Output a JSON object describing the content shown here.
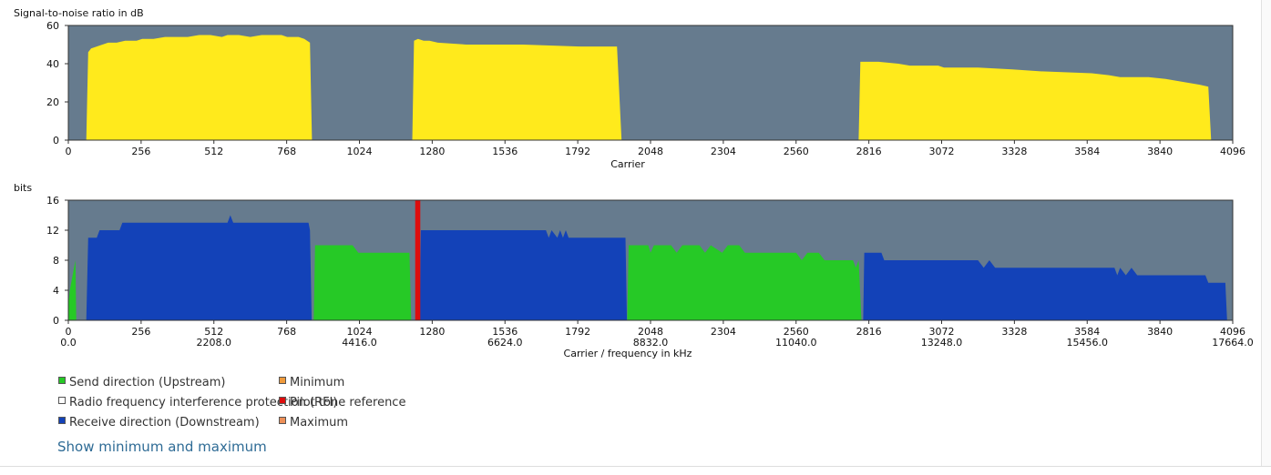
{
  "colors": {
    "plot_bg": "#667b8e",
    "snr": "#ffea1c",
    "upstream": "#26c926",
    "downstream": "#1342b8",
    "rfi": "#ffffff",
    "pilot": "#dd0d0d",
    "minimum": "#ef9a3c",
    "maximum": "#ed8f58"
  },
  "chart_data": [
    {
      "type": "area",
      "ylabel": "Signal-to-noise ratio in dB",
      "xlabel": "Carrier",
      "xlim": [
        0,
        4096
      ],
      "ylim": [
        0,
        60
      ],
      "yticks": [
        0,
        20,
        40,
        60
      ],
      "xticks": [
        0,
        256,
        512,
        768,
        1024,
        1280,
        1536,
        1792,
        2048,
        2304,
        2560,
        2816,
        3072,
        3328,
        3584,
        3840,
        4096
      ],
      "grid": false,
      "series": [
        {
          "name": "",
          "color_key": "snr",
          "points": [
            [
              63,
              0
            ],
            [
              70,
              46
            ],
            [
              80,
              48
            ],
            [
              100,
              49
            ],
            [
              120,
              50
            ],
            [
              140,
              51
            ],
            [
              170,
              51
            ],
            [
              200,
              52
            ],
            [
              240,
              52
            ],
            [
              260,
              53
            ],
            [
              300,
              53
            ],
            [
              340,
              54
            ],
            [
              360,
              54
            ],
            [
              380,
              54
            ],
            [
              420,
              54
            ],
            [
              460,
              55
            ],
            [
              500,
              55
            ],
            [
              540,
              54
            ],
            [
              560,
              55
            ],
            [
              600,
              55
            ],
            [
              640,
              54
            ],
            [
              680,
              55
            ],
            [
              720,
              55
            ],
            [
              750,
              55
            ],
            [
              770,
              54
            ],
            [
              790,
              54
            ],
            [
              810,
              54
            ],
            [
              830,
              53
            ],
            [
              850,
              51
            ],
            [
              857,
              0
            ],
            [
              1210,
              0
            ],
            [
              1216,
              52
            ],
            [
              1230,
              53
            ],
            [
              1250,
              52
            ],
            [
              1270,
              52
            ],
            [
              1300,
              51
            ],
            [
              1400,
              50
            ],
            [
              1600,
              50
            ],
            [
              1800,
              49
            ],
            [
              1930,
              49
            ],
            [
              1946,
              0
            ],
            [
              2780,
              0
            ],
            [
              2786,
              41
            ],
            [
              2850,
              41
            ],
            [
              2920,
              40
            ],
            [
              2960,
              39
            ],
            [
              3060,
              39
            ],
            [
              3080,
              38
            ],
            [
              3200,
              38
            ],
            [
              3320,
              37
            ],
            [
              3420,
              36
            ],
            [
              3600,
              35
            ],
            [
              3660,
              34
            ],
            [
              3700,
              33
            ],
            [
              3800,
              33
            ],
            [
              3860,
              32
            ],
            [
              3900,
              31
            ],
            [
              3940,
              30
            ],
            [
              3980,
              29
            ],
            [
              4010,
              28
            ],
            [
              4020,
              0
            ]
          ]
        }
      ]
    },
    {
      "type": "area",
      "ylabel": "bits",
      "xlabel": "Carrier / frequency in kHz",
      "xlim": [
        0,
        4096
      ],
      "ylim": [
        0,
        16
      ],
      "yticks": [
        0,
        4,
        8,
        12,
        16
      ],
      "xticks": [
        0,
        256,
        512,
        768,
        1024,
        1280,
        1536,
        1792,
        2048,
        2304,
        2560,
        2816,
        3072,
        3328,
        3584,
        3840,
        4096
      ],
      "freq_labels": [
        "0.0",
        "2208.0",
        "4416.0",
        "6624.0",
        "8832.0",
        "11040.0",
        "13248.0",
        "15456.0",
        "17664.0"
      ],
      "grid": false,
      "series": [
        {
          "name": "Send direction (Upstream)",
          "color_key": "upstream",
          "points": [
            [
              0,
              0
            ],
            [
              0,
              2
            ],
            [
              5,
              4
            ],
            [
              15,
              6
            ],
            [
              25,
              8
            ],
            [
              28,
              0
            ],
            [
              863,
              0
            ],
            [
              868,
              10
            ],
            [
              1000,
              10
            ],
            [
              1020,
              9
            ],
            [
              1200,
              9
            ],
            [
              1206,
              0
            ],
            [
              1966,
              0
            ],
            [
              1971,
              10
            ],
            [
              2040,
              10
            ],
            [
              2048,
              9
            ],
            [
              2060,
              10
            ],
            [
              2120,
              10
            ],
            [
              2140,
              9
            ],
            [
              2160,
              10
            ],
            [
              2220,
              10
            ],
            [
              2240,
              9
            ],
            [
              2260,
              10
            ],
            [
              2300,
              9
            ],
            [
              2320,
              10
            ],
            [
              2360,
              10
            ],
            [
              2380,
              9
            ],
            [
              2560,
              9
            ],
            [
              2580,
              8
            ],
            [
              2600,
              9
            ],
            [
              2640,
              9
            ],
            [
              2660,
              8
            ],
            [
              2760,
              8
            ],
            [
              2770,
              7
            ],
            [
              2780,
              8
            ],
            [
              2790,
              0
            ]
          ]
        },
        {
          "name": "Receive direction (Downstream)",
          "color_key": "downstream",
          "points": [
            [
              63,
              0
            ],
            [
              70,
              11
            ],
            [
              100,
              11
            ],
            [
              110,
              12
            ],
            [
              180,
              12
            ],
            [
              190,
              13
            ],
            [
              560,
              13
            ],
            [
              570,
              14
            ],
            [
              580,
              13
            ],
            [
              845,
              13
            ],
            [
              850,
              12
            ],
            [
              856,
              0
            ],
            [
              1236,
              0
            ],
            [
              1240,
              12
            ],
            [
              1280,
              12
            ],
            [
              1300,
              12
            ],
            [
              1680,
              12
            ],
            [
              1690,
              11
            ],
            [
              1700,
              12
            ],
            [
              1720,
              11
            ],
            [
              1730,
              12
            ],
            [
              1740,
              11
            ],
            [
              1750,
              12
            ],
            [
              1760,
              11
            ],
            [
              1960,
              11
            ],
            [
              1965,
              0
            ],
            [
              2796,
              0
            ],
            [
              2800,
              9
            ],
            [
              2860,
              9
            ],
            [
              2870,
              8
            ],
            [
              3200,
              8
            ],
            [
              3220,
              7
            ],
            [
              3240,
              8
            ],
            [
              3260,
              7
            ],
            [
              3680,
              7
            ],
            [
              3690,
              6
            ],
            [
              3700,
              7
            ],
            [
              3720,
              6
            ],
            [
              3740,
              7
            ],
            [
              3760,
              6
            ],
            [
              4000,
              6
            ],
            [
              4010,
              5
            ],
            [
              4070,
              5
            ],
            [
              4076,
              0
            ]
          ]
        },
        {
          "name": "Radio frequency interference protection (RFI)",
          "color_key": "rfi",
          "points": []
        },
        {
          "name": "Pilot tone reference",
          "color_key": "pilot",
          "points": [
            [
              1220,
              0
            ],
            [
              1220,
              16
            ],
            [
              1238,
              16
            ],
            [
              1238,
              0
            ]
          ]
        }
      ]
    }
  ],
  "legend": [
    {
      "label": "Send direction (Upstream)",
      "color_key": "upstream"
    },
    {
      "label": "Minimum",
      "color_key": "minimum"
    },
    {
      "label": "Radio frequency interference protection (RFI)",
      "color_key": "rfi"
    },
    {
      "label": "Pilot tone reference",
      "color_key": "pilot"
    },
    {
      "label": "Receive direction (Downstream)",
      "color_key": "downstream"
    },
    {
      "label": "Maximum",
      "color_key": "maximum"
    }
  ],
  "toggle_link": "Show minimum and maximum"
}
